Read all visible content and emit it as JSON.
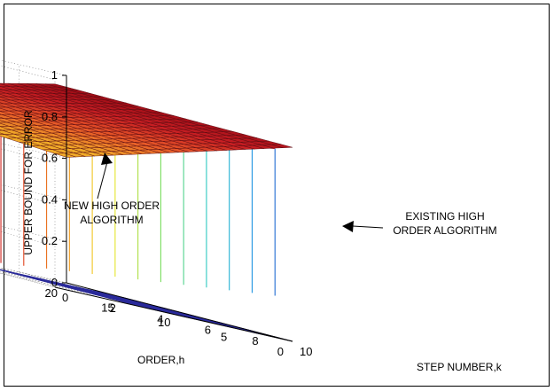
{
  "chart_data": {
    "type": "surface",
    "surfaces": [
      {
        "annotation": "NEW HIGH ORDER ALGORITHM",
        "colormap": "orange-to-dark-red",
        "description": "high surface rising from ~0.67 at k=10,h=20 to ~0.98 at k=0,h=0"
      },
      {
        "annotation": "EXISTING HIGH ORDER ALGORITHM",
        "colormap": "jet",
        "description": "near zero for h below ~15 at large k, rising steeply to the upper surface"
      }
    ],
    "x_axis": {
      "label": "STEP NUMBER,k",
      "ticks": [
        "0",
        "2",
        "4",
        "6",
        "8",
        "10"
      ],
      "range": [
        0,
        10
      ]
    },
    "y_axis": {
      "label": "ORDER,h",
      "ticks": [
        "0",
        "5",
        "10",
        "15",
        "20"
      ],
      "range": [
        0,
        20
      ]
    },
    "z_axis": {
      "label": "UPPER BOUND FOR ERROR",
      "ticks": [
        "0",
        "0.2",
        "0.4",
        "0.6",
        "0.8",
        "1"
      ],
      "range": [
        0,
        1
      ]
    },
    "grid": true,
    "annotations": [
      {
        "text_lines": [
          "NEW HIGH ORDER",
          "ALGORITHM"
        ]
      },
      {
        "text_lines": [
          "EXISTING HIGH",
          "ORDER ALGORITHM"
        ]
      }
    ]
  }
}
